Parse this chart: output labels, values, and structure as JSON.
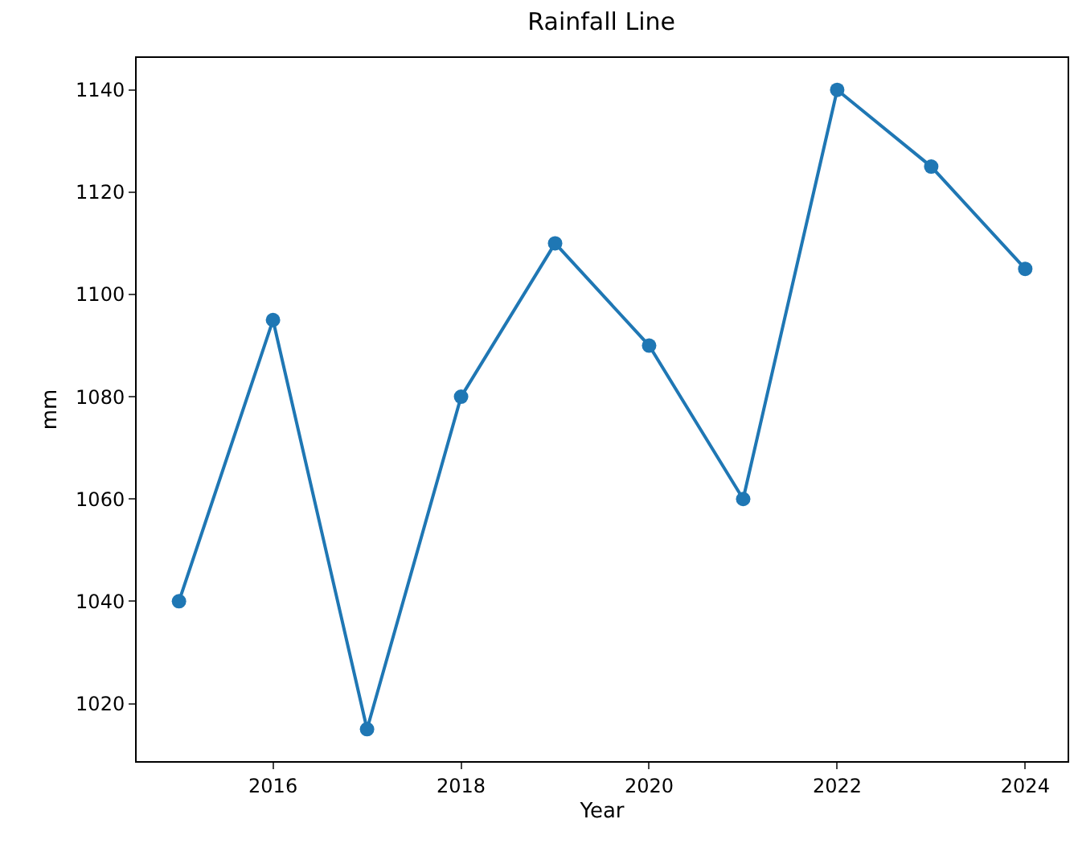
{
  "chart_data": {
    "type": "line",
    "title": "Rainfall Line",
    "xlabel": "Year",
    "ylabel": "mm",
    "x": [
      2015,
      2016,
      2017,
      2018,
      2019,
      2020,
      2021,
      2022,
      2023,
      2024
    ],
    "series": [
      {
        "color": "#1f77b4",
        "values": [
          1040,
          1095,
          1015,
          1080,
          1110,
          1090,
          1060,
          1140,
          1125,
          1105
        ]
      }
    ],
    "xlim": [
      2014.55,
      2024.45
    ],
    "xticks": [
      2016,
      2018,
      2020,
      2022,
      2024
    ],
    "ylim": [
      1008.75,
      1146.25
    ],
    "yticks": [
      1020,
      1040,
      1060,
      1080,
      1100,
      1120,
      1140
    ],
    "marker": "circle",
    "line_style": "solid"
  }
}
